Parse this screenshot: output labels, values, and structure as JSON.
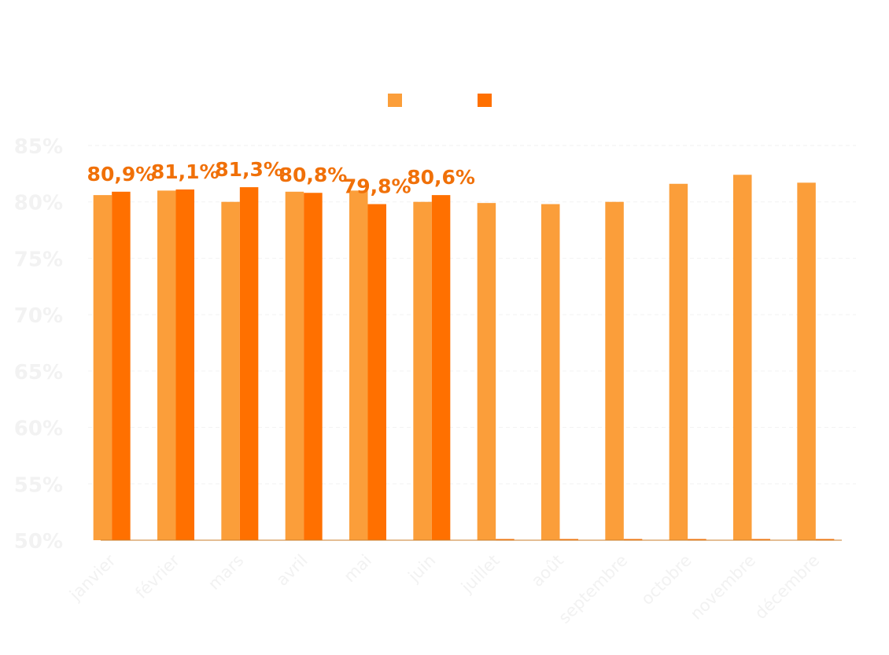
{
  "chart_data": {
    "type": "bar",
    "title": "",
    "xlabel": "",
    "ylabel": "",
    "ylim": [
      50,
      85
    ],
    "yticks": [
      50,
      55,
      60,
      65,
      70,
      75,
      80,
      85
    ],
    "ytick_suffix": "%",
    "legend_position": "top-center",
    "grid": true,
    "categories": [
      "janvier",
      "février",
      "mars",
      "avril",
      "mai",
      "juin",
      "juillet",
      "août",
      "septembre",
      "octobre",
      "novembre",
      "décembre"
    ],
    "series": [
      {
        "name": "",
        "color": "#fb9e3a",
        "values": [
          80.6,
          81.0,
          80.0,
          80.9,
          81.0,
          80.0,
          79.9,
          79.8,
          80.0,
          81.6,
          82.4,
          81.7
        ]
      },
      {
        "name": "",
        "color": "#ff7000",
        "values": [
          80.9,
          81.1,
          81.3,
          80.8,
          79.8,
          80.6,
          null,
          null,
          null,
          null,
          null,
          null
        ],
        "data_labels": [
          "80,9%",
          "81,1%",
          "81,3%",
          "80,8%",
          "79,8%",
          "80,6%",
          null,
          null,
          null,
          null,
          null,
          null
        ]
      }
    ],
    "colors": {
      "grid": "#f2f2f2",
      "tick_text": "#f2f2f2",
      "baseline": "#c87d2a",
      "label": "#f07008"
    }
  }
}
